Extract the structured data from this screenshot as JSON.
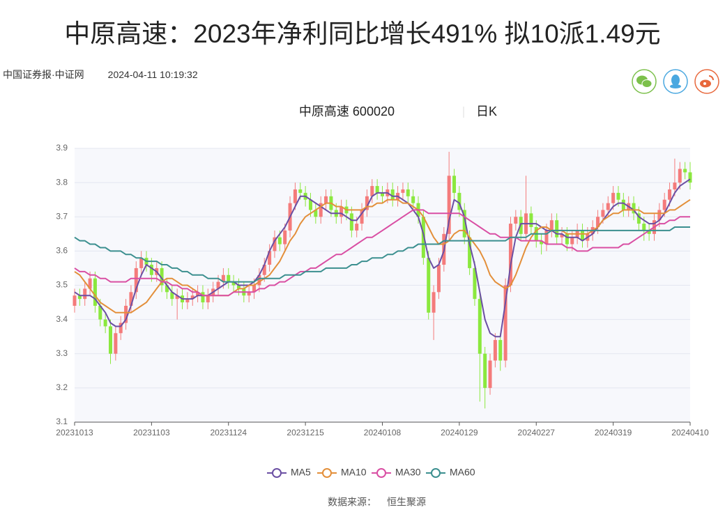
{
  "header": {
    "title": "中原高速：2023年净利同比增长491% 拟10派1.49元",
    "source": "中国证券报·中证网",
    "time": "2024-04-11 10:19:32"
  },
  "chart_data": {
    "type": "candlestick",
    "title": "中原高速 600020",
    "period": "日K",
    "categories": [
      "20231013",
      null,
      null,
      null,
      null,
      null,
      null,
      null,
      null,
      null,
      null,
      null,
      null,
      null,
      null,
      "20231103",
      null,
      null,
      null,
      null,
      null,
      null,
      null,
      null,
      null,
      null,
      null,
      null,
      null,
      null,
      "20231124",
      null,
      null,
      null,
      null,
      null,
      null,
      null,
      null,
      null,
      null,
      null,
      null,
      null,
      null,
      "20231215",
      null,
      null,
      null,
      null,
      null,
      null,
      null,
      null,
      null,
      null,
      null,
      null,
      null,
      null,
      "20240108",
      null,
      null,
      null,
      null,
      null,
      null,
      null,
      null,
      null,
      null,
      null,
      null,
      null,
      null,
      "20240129",
      null,
      null,
      null,
      null,
      null,
      null,
      null,
      null,
      null,
      null,
      null,
      null,
      null,
      null,
      "20240227",
      null,
      null,
      null,
      null,
      null,
      null,
      null,
      null,
      null,
      null,
      null,
      null,
      null,
      null,
      "20240319",
      null,
      null,
      null,
      null,
      null,
      null,
      null,
      null,
      null,
      null,
      null,
      null,
      null,
      null,
      "20240410"
    ],
    "open": [
      3.44,
      3.47,
      3.46,
      3.49,
      3.52,
      3.44,
      3.4,
      3.38,
      3.3,
      3.36,
      3.39,
      3.44,
      3.48,
      3.55,
      3.58,
      3.56,
      3.53,
      3.55,
      3.5,
      3.48,
      3.46,
      3.47,
      3.45,
      3.46,
      3.47,
      3.48,
      3.45,
      3.47,
      3.49,
      3.51,
      3.53,
      3.51,
      3.5,
      3.49,
      3.47,
      3.48,
      3.5,
      3.53,
      3.56,
      3.6,
      3.64,
      3.62,
      3.66,
      3.74,
      3.78,
      3.77,
      3.75,
      3.72,
      3.7,
      3.74,
      3.76,
      3.72,
      3.7,
      3.73,
      3.71,
      3.66,
      3.68,
      3.72,
      3.76,
      3.79,
      3.77,
      3.76,
      3.78,
      3.75,
      3.77,
      3.78,
      3.76,
      3.74,
      3.7,
      3.58,
      3.42,
      3.48,
      3.56,
      3.65,
      3.82,
      3.77,
      3.72,
      3.64,
      3.55,
      3.46,
      3.3,
      3.2,
      3.28,
      3.34,
      3.28,
      3.5,
      3.68,
      3.7,
      3.65,
      3.71,
      3.67,
      3.63,
      3.62,
      3.66,
      3.69,
      3.64,
      3.65,
      3.62,
      3.64,
      3.66,
      3.63,
      3.65,
      3.67,
      3.7,
      3.72,
      3.74,
      3.77,
      3.75,
      3.72,
      3.74,
      3.71,
      3.68,
      3.66,
      3.65,
      3.69,
      3.72,
      3.75,
      3.78,
      3.8,
      3.84,
      3.83
    ],
    "high": [
      3.49,
      3.49,
      3.51,
      3.54,
      3.54,
      3.46,
      3.42,
      3.4,
      3.38,
      3.41,
      3.46,
      3.5,
      3.57,
      3.6,
      3.6,
      3.58,
      3.57,
      3.57,
      3.52,
      3.5,
      3.49,
      3.49,
      3.48,
      3.49,
      3.5,
      3.5,
      3.49,
      3.51,
      3.53,
      3.55,
      3.55,
      3.53,
      3.52,
      3.51,
      3.5,
      3.52,
      3.55,
      3.58,
      3.62,
      3.66,
      3.66,
      3.68,
      3.76,
      3.8,
      3.8,
      3.79,
      3.77,
      3.74,
      3.76,
      3.78,
      3.78,
      3.74,
      3.75,
      3.75,
      3.73,
      3.7,
      3.74,
      3.78,
      3.81,
      3.81,
      3.79,
      3.8,
      3.8,
      3.79,
      3.8,
      3.8,
      3.78,
      3.76,
      3.72,
      3.6,
      3.5,
      3.58,
      3.67,
      3.89,
      3.84,
      3.79,
      3.74,
      3.66,
      3.57,
      3.48,
      3.32,
      3.3,
      3.36,
      3.36,
      3.52,
      3.7,
      3.72,
      3.72,
      3.82,
      3.73,
      3.69,
      3.65,
      3.68,
      3.71,
      3.71,
      3.67,
      3.67,
      3.66,
      3.68,
      3.68,
      3.67,
      3.69,
      3.72,
      3.74,
      3.76,
      3.79,
      3.79,
      3.77,
      3.76,
      3.76,
      3.73,
      3.7,
      3.68,
      3.71,
      3.74,
      3.77,
      3.8,
      3.87,
      3.86,
      3.86,
      3.86
    ],
    "low": [
      3.42,
      3.44,
      3.44,
      3.47,
      3.42,
      3.38,
      3.36,
      3.27,
      3.28,
      3.34,
      3.37,
      3.42,
      3.46,
      3.53,
      3.54,
      3.51,
      3.51,
      3.48,
      3.46,
      3.44,
      3.4,
      3.43,
      3.43,
      3.44,
      3.45,
      3.43,
      3.43,
      3.45,
      3.47,
      3.49,
      3.49,
      3.48,
      3.47,
      3.45,
      3.45,
      3.46,
      3.48,
      3.51,
      3.54,
      3.58,
      3.6,
      3.6,
      3.64,
      3.72,
      3.75,
      3.73,
      3.7,
      3.68,
      3.68,
      3.72,
      3.7,
      3.68,
      3.68,
      3.69,
      3.64,
      3.64,
      3.66,
      3.7,
      3.74,
      3.75,
      3.74,
      3.74,
      3.73,
      3.73,
      3.75,
      3.74,
      3.72,
      3.68,
      3.56,
      3.4,
      3.34,
      3.46,
      3.54,
      3.63,
      3.75,
      3.7,
      3.62,
      3.53,
      3.44,
      3.16,
      3.14,
      3.18,
      3.26,
      3.25,
      3.26,
      3.48,
      3.66,
      3.63,
      3.63,
      3.65,
      3.61,
      3.59,
      3.6,
      3.64,
      3.62,
      3.62,
      3.6,
      3.6,
      3.62,
      3.61,
      3.61,
      3.63,
      3.65,
      3.68,
      3.7,
      3.72,
      3.73,
      3.7,
      3.7,
      3.69,
      3.66,
      3.63,
      3.63,
      3.63,
      3.67,
      3.7,
      3.73,
      3.76,
      3.78,
      3.81,
      3.78
    ],
    "close": [
      3.47,
      3.46,
      3.49,
      3.52,
      3.44,
      3.4,
      3.38,
      3.3,
      3.36,
      3.39,
      3.44,
      3.48,
      3.55,
      3.58,
      3.56,
      3.53,
      3.55,
      3.5,
      3.48,
      3.46,
      3.47,
      3.45,
      3.46,
      3.47,
      3.48,
      3.45,
      3.47,
      3.49,
      3.51,
      3.53,
      3.51,
      3.5,
      3.49,
      3.47,
      3.48,
      3.5,
      3.53,
      3.56,
      3.6,
      3.64,
      3.62,
      3.66,
      3.74,
      3.78,
      3.77,
      3.75,
      3.72,
      3.7,
      3.74,
      3.76,
      3.72,
      3.7,
      3.73,
      3.71,
      3.66,
      3.68,
      3.72,
      3.76,
      3.79,
      3.77,
      3.76,
      3.78,
      3.75,
      3.77,
      3.78,
      3.76,
      3.74,
      3.7,
      3.58,
      3.42,
      3.48,
      3.56,
      3.65,
      3.82,
      3.77,
      3.72,
      3.64,
      3.55,
      3.46,
      3.3,
      3.2,
      3.28,
      3.34,
      3.28,
      3.5,
      3.68,
      3.7,
      3.65,
      3.71,
      3.67,
      3.63,
      3.62,
      3.66,
      3.69,
      3.64,
      3.65,
      3.62,
      3.64,
      3.66,
      3.63,
      3.65,
      3.67,
      3.7,
      3.72,
      3.74,
      3.77,
      3.75,
      3.72,
      3.74,
      3.71,
      3.68,
      3.66,
      3.65,
      3.69,
      3.72,
      3.75,
      3.78,
      3.8,
      3.84,
      3.83,
      3.8
    ],
    "up_color": "#f47b7b",
    "down_color": "#8be83e",
    "series": [
      {
        "name": "MA5",
        "color": "#6b4fa3",
        "values": [
          3.48,
          3.47,
          3.47,
          3.47,
          3.46,
          3.44,
          3.42,
          3.39,
          3.38,
          3.38,
          3.4,
          3.44,
          3.49,
          3.53,
          3.56,
          3.55,
          3.54,
          3.52,
          3.5,
          3.48,
          3.47,
          3.46,
          3.46,
          3.46,
          3.47,
          3.47,
          3.47,
          3.48,
          3.49,
          3.5,
          3.51,
          3.51,
          3.5,
          3.5,
          3.5,
          3.51,
          3.53,
          3.56,
          3.6,
          3.63,
          3.65,
          3.67,
          3.7,
          3.73,
          3.76,
          3.76,
          3.75,
          3.74,
          3.73,
          3.72,
          3.71,
          3.71,
          3.71,
          3.7,
          3.69,
          3.69,
          3.71,
          3.73,
          3.76,
          3.77,
          3.77,
          3.77,
          3.76,
          3.76,
          3.75,
          3.74,
          3.72,
          3.7,
          3.65,
          3.58,
          3.55,
          3.56,
          3.6,
          3.69,
          3.75,
          3.74,
          3.7,
          3.62,
          3.56,
          3.48,
          3.4,
          3.36,
          3.35,
          3.35,
          3.45,
          3.56,
          3.64,
          3.68,
          3.68,
          3.68,
          3.68,
          3.67,
          3.66,
          3.66,
          3.65,
          3.65,
          3.64,
          3.64,
          3.64,
          3.63,
          3.64,
          3.65,
          3.67,
          3.69,
          3.71,
          3.73,
          3.74,
          3.74,
          3.73,
          3.72,
          3.7,
          3.69,
          3.68,
          3.68,
          3.69,
          3.71,
          3.74,
          3.77,
          3.79,
          3.8,
          3.81
        ]
      },
      {
        "name": "MA10",
        "color": "#e38f3a",
        "values": [
          3.54,
          3.53,
          3.51,
          3.49,
          3.47,
          3.45,
          3.44,
          3.43,
          3.42,
          3.42,
          3.42,
          3.42,
          3.43,
          3.44,
          3.45,
          3.47,
          3.49,
          3.51,
          3.52,
          3.52,
          3.51,
          3.5,
          3.5,
          3.49,
          3.48,
          3.47,
          3.47,
          3.47,
          3.47,
          3.47,
          3.47,
          3.48,
          3.49,
          3.49,
          3.5,
          3.5,
          3.51,
          3.52,
          3.53,
          3.55,
          3.57,
          3.6,
          3.63,
          3.65,
          3.68,
          3.7,
          3.71,
          3.72,
          3.73,
          3.74,
          3.74,
          3.73,
          3.73,
          3.72,
          3.72,
          3.72,
          3.72,
          3.73,
          3.73,
          3.74,
          3.74,
          3.75,
          3.75,
          3.75,
          3.74,
          3.74,
          3.73,
          3.72,
          3.7,
          3.67,
          3.64,
          3.62,
          3.62,
          3.63,
          3.65,
          3.66,
          3.66,
          3.64,
          3.62,
          3.6,
          3.57,
          3.53,
          3.51,
          3.5,
          3.49,
          3.5,
          3.53,
          3.57,
          3.61,
          3.64,
          3.66,
          3.67,
          3.67,
          3.66,
          3.66,
          3.66,
          3.65,
          3.65,
          3.65,
          3.65,
          3.65,
          3.66,
          3.67,
          3.69,
          3.7,
          3.71,
          3.71,
          3.72,
          3.72,
          3.72,
          3.72,
          3.71,
          3.71,
          3.71,
          3.71,
          3.71,
          3.72,
          3.72,
          3.73,
          3.74,
          3.75
        ]
      },
      {
        "name": "MA30",
        "color": "#d94ea3",
        "values": [
          3.55,
          3.54,
          3.54,
          3.53,
          3.53,
          3.52,
          3.52,
          3.51,
          3.51,
          3.51,
          3.51,
          3.52,
          3.52,
          3.52,
          3.52,
          3.52,
          3.52,
          3.51,
          3.51,
          3.5,
          3.5,
          3.49,
          3.49,
          3.48,
          3.48,
          3.47,
          3.47,
          3.47,
          3.47,
          3.47,
          3.47,
          3.48,
          3.48,
          3.48,
          3.48,
          3.48,
          3.49,
          3.49,
          3.5,
          3.5,
          3.51,
          3.51,
          3.52,
          3.53,
          3.54,
          3.54,
          3.55,
          3.55,
          3.56,
          3.57,
          3.58,
          3.59,
          3.59,
          3.6,
          3.61,
          3.62,
          3.63,
          3.64,
          3.64,
          3.65,
          3.66,
          3.67,
          3.68,
          3.69,
          3.7,
          3.71,
          3.72,
          3.72,
          3.72,
          3.71,
          3.71,
          3.71,
          3.71,
          3.71,
          3.71,
          3.71,
          3.7,
          3.69,
          3.68,
          3.67,
          3.66,
          3.65,
          3.65,
          3.64,
          3.64,
          3.64,
          3.64,
          3.63,
          3.63,
          3.63,
          3.63,
          3.63,
          3.62,
          3.62,
          3.62,
          3.62,
          3.61,
          3.61,
          3.6,
          3.6,
          3.6,
          3.61,
          3.61,
          3.61,
          3.61,
          3.61,
          3.61,
          3.62,
          3.62,
          3.63,
          3.64,
          3.65,
          3.66,
          3.67,
          3.68,
          3.68,
          3.69,
          3.69,
          3.7,
          3.7,
          3.7
        ]
      },
      {
        "name": "MA60",
        "color": "#3b8f8f",
        "values": [
          3.64,
          3.63,
          3.63,
          3.62,
          3.62,
          3.61,
          3.61,
          3.6,
          3.6,
          3.6,
          3.59,
          3.59,
          3.58,
          3.58,
          3.57,
          3.57,
          3.57,
          3.56,
          3.56,
          3.55,
          3.55,
          3.54,
          3.54,
          3.53,
          3.53,
          3.53,
          3.52,
          3.52,
          3.52,
          3.51,
          3.51,
          3.51,
          3.51,
          3.51,
          3.51,
          3.51,
          3.52,
          3.52,
          3.52,
          3.52,
          3.52,
          3.53,
          3.53,
          3.53,
          3.53,
          3.54,
          3.54,
          3.54,
          3.54,
          3.55,
          3.55,
          3.55,
          3.55,
          3.55,
          3.56,
          3.56,
          3.57,
          3.57,
          3.58,
          3.58,
          3.58,
          3.59,
          3.59,
          3.6,
          3.6,
          3.61,
          3.61,
          3.62,
          3.62,
          3.62,
          3.62,
          3.62,
          3.63,
          3.63,
          3.63,
          3.63,
          3.63,
          3.63,
          3.63,
          3.63,
          3.63,
          3.63,
          3.63,
          3.63,
          3.63,
          3.64,
          3.64,
          3.64,
          3.64,
          3.65,
          3.65,
          3.65,
          3.65,
          3.66,
          3.66,
          3.66,
          3.66,
          3.66,
          3.66,
          3.66,
          3.66,
          3.66,
          3.66,
          3.66,
          3.66,
          3.66,
          3.66,
          3.66,
          3.66,
          3.66,
          3.66,
          3.66,
          3.66,
          3.66,
          3.66,
          3.66,
          3.66,
          3.67,
          3.67,
          3.67,
          3.67
        ]
      }
    ],
    "ylim": [
      3.1,
      3.9
    ],
    "yticks": [
      3.1,
      3.2,
      3.3,
      3.4,
      3.5,
      3.6,
      3.7,
      3.8,
      3.9
    ],
    "grid": true
  },
  "footer": {
    "label": "数据来源：",
    "source": "恒生聚源"
  }
}
